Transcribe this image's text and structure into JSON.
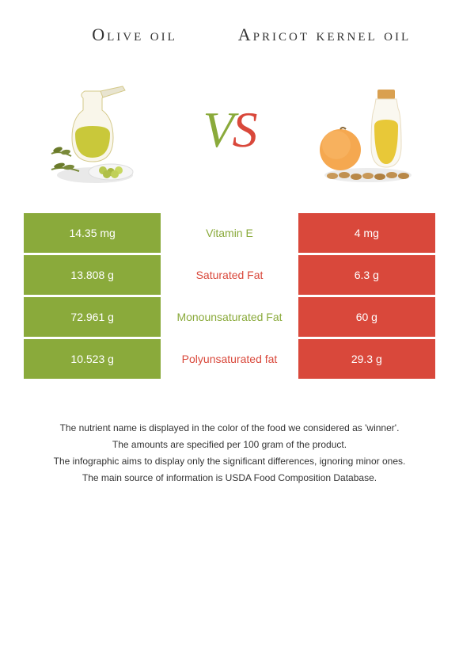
{
  "colors": {
    "left_bg": "#8aaa3b",
    "right_bg": "#d9483b",
    "left_text": "#8aaa3b",
    "right_text": "#d9483b",
    "body_text": "#333333"
  },
  "header": {
    "left_title": "Olive oil",
    "right_title": "Apricot kernel oil"
  },
  "vs": {
    "v": "V",
    "s": "S"
  },
  "rows": [
    {
      "left": "14.35 mg",
      "mid": "Vitamin E",
      "right": "4 mg",
      "winner": "left"
    },
    {
      "left": "13.808 g",
      "mid": "Saturated Fat",
      "right": "6.3 g",
      "winner": "right"
    },
    {
      "left": "72.961 g",
      "mid": "Monounsaturated Fat",
      "right": "60 g",
      "winner": "left"
    },
    {
      "left": "10.523 g",
      "mid": "Polyunsaturated fat",
      "right": "29.3 g",
      "winner": "right"
    }
  ],
  "footer": {
    "line1": "The nutrient name is displayed in the color of the food we considered as 'winner'.",
    "line2": "The amounts are specified per 100 gram of the product.",
    "line3": "The infographic aims to display only the significant differences, ignoring minor ones.",
    "line4": "The main source of information is USDA Food Composition Database."
  }
}
